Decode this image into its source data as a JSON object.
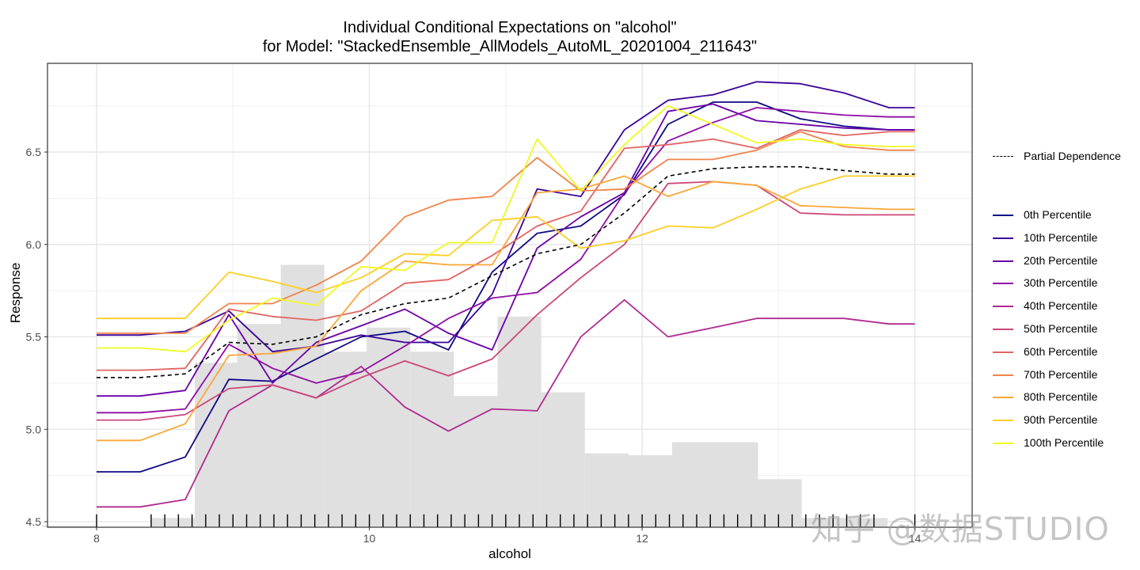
{
  "chart_data": {
    "type": "line",
    "title": "Individual Conditional Expectations on \"alcohol\"",
    "subtitle": "for Model: \"StackedEnsemble_AllModels_AutoML_20201004_211643\"",
    "xlabel": "alcohol",
    "ylabel": "Response",
    "xlim": [
      7.64,
      14.42
    ],
    "ylim": [
      4.47,
      6.98
    ],
    "x_ticks": [
      8,
      10,
      12,
      14
    ],
    "y_ticks": [
      4.5,
      5.0,
      5.5,
      6.0,
      6.5
    ],
    "grid": true,
    "legend_position": "right",
    "x": [
      8.0,
      8.32,
      8.65,
      8.97,
      9.29,
      9.61,
      9.94,
      10.26,
      10.58,
      10.9,
      11.23,
      11.55,
      11.87,
      12.19,
      12.52,
      12.84,
      13.16,
      13.48,
      13.81,
      14.0
    ],
    "partial_dependence": {
      "name": "Partial Dependence",
      "color": "#000000",
      "style": "dashed",
      "values": [
        5.28,
        5.28,
        5.3,
        5.47,
        5.46,
        5.5,
        5.62,
        5.68,
        5.71,
        5.83,
        5.95,
        6.0,
        6.17,
        6.37,
        6.41,
        6.42,
        6.42,
        6.4,
        6.38,
        6.38
      ]
    },
    "series": [
      {
        "name": "0th Percentile",
        "color": "#0d0887",
        "values": [
          4.77,
          4.77,
          4.85,
          5.27,
          5.26,
          5.38,
          5.5,
          5.53,
          5.43,
          5.85,
          6.06,
          6.1,
          6.27,
          6.65,
          6.77,
          6.77,
          6.68,
          6.64,
          6.62,
          6.62
        ]
      },
      {
        "name": "10th Percentile",
        "color": "#3b049a",
        "values": [
          5.51,
          5.51,
          5.53,
          5.64,
          5.42,
          5.45,
          5.51,
          5.47,
          5.47,
          5.73,
          6.3,
          6.26,
          6.62,
          6.78,
          6.81,
          6.88,
          6.87,
          6.82,
          6.74,
          6.74
        ]
      },
      {
        "name": "20th Percentile",
        "color": "#6a00a8",
        "values": [
          5.18,
          5.18,
          5.21,
          5.62,
          5.25,
          5.47,
          5.56,
          5.65,
          5.52,
          5.43,
          5.98,
          6.15,
          6.28,
          6.72,
          6.76,
          6.67,
          6.65,
          6.63,
          6.62,
          6.62
        ]
      },
      {
        "name": "30th Percentile",
        "color": "#8f0da4",
        "values": [
          5.09,
          5.09,
          5.11,
          5.46,
          5.33,
          5.25,
          5.31,
          5.45,
          5.6,
          5.71,
          5.74,
          5.92,
          6.28,
          6.56,
          6.66,
          6.74,
          6.72,
          6.7,
          6.69,
          6.69
        ]
      },
      {
        "name": "40th Percentile",
        "color": "#b12a90",
        "values": [
          4.58,
          4.58,
          4.62,
          5.1,
          5.24,
          5.17,
          5.34,
          5.12,
          4.99,
          5.11,
          5.1,
          5.5,
          5.7,
          5.5,
          5.55,
          5.6,
          5.6,
          5.6,
          5.57,
          5.57
        ]
      },
      {
        "name": "50th Percentile",
        "color": "#cc4778",
        "values": [
          5.05,
          5.05,
          5.08,
          5.22,
          5.24,
          5.17,
          5.28,
          5.37,
          5.29,
          5.38,
          5.62,
          5.82,
          6.0,
          6.33,
          6.34,
          6.32,
          6.17,
          6.16,
          6.16,
          6.16
        ]
      },
      {
        "name": "60th Percentile",
        "color": "#e16462",
        "values": [
          5.32,
          5.32,
          5.33,
          5.65,
          5.61,
          5.59,
          5.64,
          5.79,
          5.81,
          5.94,
          6.1,
          6.18,
          6.52,
          6.54,
          6.57,
          6.52,
          6.62,
          6.59,
          6.61,
          6.61
        ]
      },
      {
        "name": "70th Percentile",
        "color": "#f2844b",
        "values": [
          5.52,
          5.52,
          5.52,
          5.68,
          5.68,
          5.78,
          5.91,
          6.15,
          6.24,
          6.26,
          6.47,
          6.29,
          6.3,
          6.46,
          6.46,
          6.51,
          6.61,
          6.53,
          6.51,
          6.51
        ]
      },
      {
        "name": "80th Percentile",
        "color": "#fca636",
        "values": [
          4.94,
          4.94,
          5.03,
          5.4,
          5.41,
          5.45,
          5.75,
          5.91,
          5.89,
          5.89,
          6.28,
          6.3,
          6.37,
          6.26,
          6.34,
          6.32,
          6.21,
          6.2,
          6.19,
          6.19
        ]
      },
      {
        "name": "90th Percentile",
        "color": "#fcce25",
        "values": [
          5.6,
          5.6,
          5.6,
          5.85,
          5.8,
          5.74,
          5.82,
          5.95,
          5.94,
          6.13,
          6.15,
          5.98,
          6.02,
          6.1,
          6.09,
          6.19,
          6.3,
          6.37,
          6.37,
          6.37
        ]
      },
      {
        "name": "100th Percentile",
        "color": "#f0f921",
        "values": [
          5.44,
          5.44,
          5.42,
          5.59,
          5.71,
          5.67,
          5.88,
          5.86,
          6.01,
          6.01,
          6.57,
          6.29,
          6.54,
          6.75,
          6.65,
          6.55,
          6.57,
          6.54,
          6.53,
          6.53
        ]
      }
    ],
    "histogram": {
      "color": "#e0e0e0",
      "bins": [
        {
          "x0": 7.6,
          "x1": 8.0,
          "y": 4.48
        },
        {
          "x0": 8.4,
          "x1": 8.72,
          "y": 4.52
        },
        {
          "x0": 8.72,
          "x1": 9.03,
          "y": 5.36
        },
        {
          "x0": 9.03,
          "x1": 9.35,
          "y": 5.57
        },
        {
          "x0": 9.35,
          "x1": 9.67,
          "y": 5.89
        },
        {
          "x0": 9.67,
          "x1": 9.98,
          "y": 5.42
        },
        {
          "x0": 9.98,
          "x1": 10.3,
          "y": 5.55
        },
        {
          "x0": 10.3,
          "x1": 10.62,
          "y": 5.42
        },
        {
          "x0": 10.62,
          "x1": 10.94,
          "y": 5.18
        },
        {
          "x0": 10.94,
          "x1": 11.26,
          "y": 5.61
        },
        {
          "x0": 11.26,
          "x1": 11.58,
          "y": 5.2
        },
        {
          "x0": 11.58,
          "x1": 11.9,
          "y": 4.87
        },
        {
          "x0": 11.9,
          "x1": 12.22,
          "y": 4.86
        },
        {
          "x0": 12.22,
          "x1": 12.85,
          "y": 4.93
        },
        {
          "x0": 12.85,
          "x1": 13.17,
          "y": 4.73
        },
        {
          "x0": 13.17,
          "x1": 13.8,
          "y": 4.52
        }
      ]
    },
    "rug_x": [
      8.0,
      8.4,
      8.5,
      8.6,
      8.7,
      8.8,
      8.9,
      9.0,
      9.1,
      9.2,
      9.3,
      9.4,
      9.5,
      9.6,
      9.7,
      9.8,
      9.9,
      10.0,
      10.1,
      10.2,
      10.3,
      10.4,
      10.5,
      10.6,
      10.7,
      10.8,
      10.9,
      11.0,
      11.1,
      11.2,
      11.3,
      11.4,
      11.5,
      11.6,
      11.7,
      11.8,
      11.9,
      12.0,
      12.1,
      12.2,
      12.3,
      12.4,
      12.5,
      12.6,
      12.7,
      12.8,
      12.9,
      13.0,
      13.1,
      13.2,
      13.3,
      13.4,
      13.5,
      13.6,
      13.7,
      14.0
    ]
  },
  "legend": {
    "pd_label": "Partial Dependence",
    "items": [
      "0th Percentile",
      "10th Percentile",
      "20th Percentile",
      "30th Percentile",
      "40th Percentile",
      "50th Percentile",
      "60th Percentile",
      "70th Percentile",
      "80th Percentile",
      "90th Percentile",
      "100th Percentile"
    ]
  },
  "watermark": "知乎 @数据STUDIO"
}
